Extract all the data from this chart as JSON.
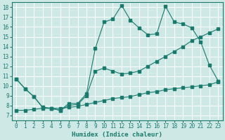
{
  "title": "",
  "xlabel": "Humidex (Indice chaleur)",
  "xlim": [
    -0.5,
    23.5
  ],
  "ylim": [
    6.5,
    18.5
  ],
  "xticks": [
    0,
    1,
    2,
    3,
    4,
    5,
    6,
    7,
    8,
    9,
    10,
    11,
    12,
    13,
    14,
    15,
    16,
    17,
    18,
    19,
    20,
    21,
    22,
    23
  ],
  "yticks": [
    7,
    8,
    9,
    10,
    11,
    12,
    13,
    14,
    15,
    16,
    17,
    18
  ],
  "bg_color": "#cde8e5",
  "line_color": "#1a7a6e",
  "grid_color": "#ffffff",
  "line1_x": [
    0,
    1,
    2,
    3,
    4,
    5,
    6,
    7,
    8,
    9,
    10,
    11,
    12,
    13,
    14,
    15,
    16,
    17,
    18,
    19,
    20,
    21,
    22,
    23
  ],
  "line1_y": [
    10.7,
    9.7,
    8.9,
    7.8,
    7.7,
    7.5,
    8.2,
    8.2,
    9.2,
    13.8,
    16.5,
    16.8,
    18.2,
    16.7,
    15.9,
    15.2,
    15.3,
    18.1,
    16.5,
    16.3,
    15.9,
    14.5,
    12.1,
    10.5
  ],
  "line2_x": [
    0,
    1,
    2,
    3,
    4,
    5,
    6,
    7,
    8,
    9,
    10,
    11,
    12,
    13,
    14,
    15,
    16,
    17,
    18,
    19,
    20,
    21,
    22,
    23
  ],
  "line2_y": [
    10.7,
    9.7,
    8.9,
    7.8,
    7.7,
    7.5,
    8.0,
    8.1,
    9.0,
    11.5,
    11.8,
    11.5,
    11.2,
    11.3,
    11.5,
    12.0,
    12.5,
    13.0,
    13.5,
    14.0,
    14.6,
    15.0,
    15.4,
    15.8
  ],
  "line3_x": [
    0,
    1,
    2,
    3,
    4,
    5,
    6,
    7,
    8,
    9,
    10,
    11,
    12,
    13,
    14,
    15,
    16,
    17,
    18,
    19,
    20,
    21,
    22,
    23
  ],
  "line3_y": [
    7.5,
    7.5,
    7.6,
    7.7,
    7.7,
    7.7,
    7.8,
    7.9,
    8.1,
    8.3,
    8.5,
    8.7,
    8.8,
    8.9,
    9.1,
    9.3,
    9.4,
    9.6,
    9.7,
    9.8,
    9.9,
    10.0,
    10.1,
    10.4
  ]
}
